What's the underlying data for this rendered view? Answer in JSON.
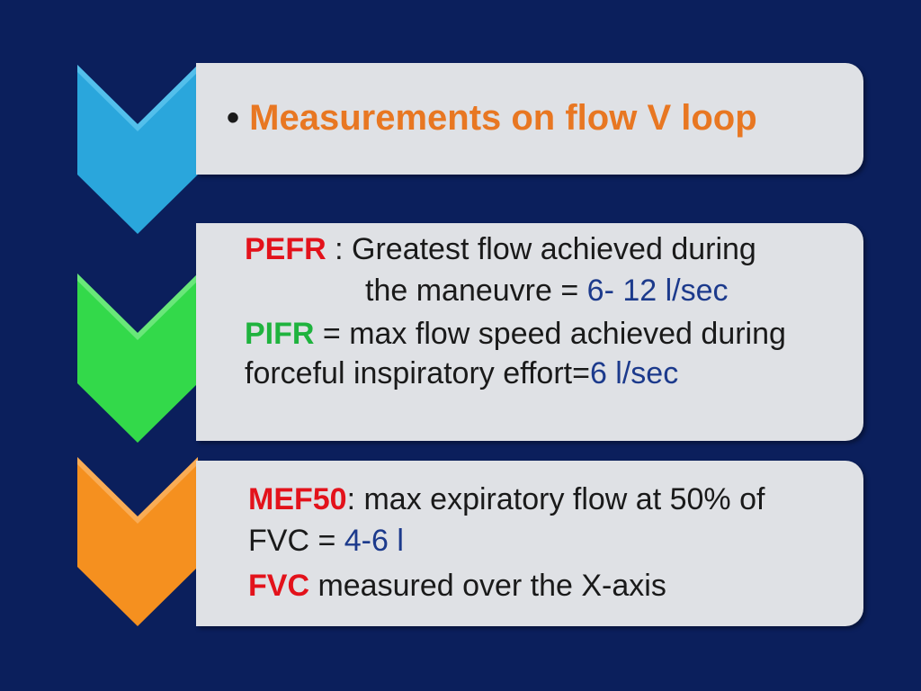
{
  "colors": {
    "background": "#0b1f5c",
    "box": "#dfe1e5",
    "chevron_blue": "#2aa6dc",
    "chevron_green": "#33d94a",
    "chevron_orange": "#f5901f",
    "title": "#e87722",
    "term_red": "#e3121b",
    "term_green": "#1fb33e",
    "value_blue": "#1c3a8c"
  },
  "step1": {
    "bullet": "•",
    "title": "Measurements on flow V loop"
  },
  "step2": {
    "pefr_term": "PEFR",
    "pefr_text": " : Greatest flow achieved during",
    "pefr_text2": "the maneuvre = ",
    "pefr_value": "6- 12 l/sec",
    "pifr_term": "PIFR",
    "pifr_text": "  =  max flow speed achieved during",
    "pifr_text2": "forceful inspiratory effort=",
    "pifr_value": "6 l/sec"
  },
  "step3": {
    "mef_term": "MEF50",
    "mef_text": ": max expiratory flow at 50% of",
    "fvc_text": "FVC = ",
    "fvc_value": "4-6 l",
    "fvc_term": "FVC",
    "fvc_text2": " measured over the X-axis"
  }
}
